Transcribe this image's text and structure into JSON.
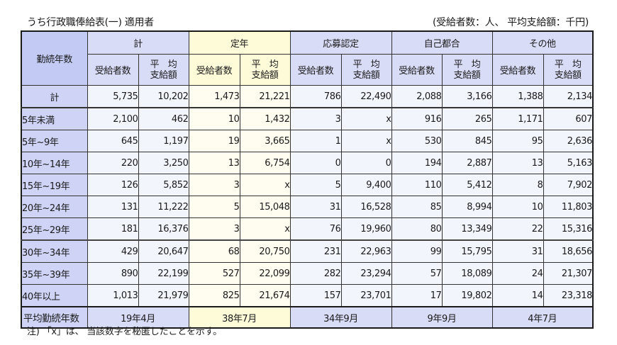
{
  "title": "うち行政職俸給表(一) 適用者",
  "units": "(受給者数：人、 平均支給額：千円)",
  "header": {
    "corner": "勤続年数",
    "groups": [
      "計",
      "定年",
      "応募認定",
      "自己都合",
      "その他"
    ],
    "sub_count": "受給者数",
    "sub_avg_line1": "平　均",
    "sub_avg_line2": "支給額"
  },
  "rows": [
    {
      "label": "計",
      "values": [
        "5,735",
        "10,202",
        "1,473",
        "21,221",
        "786",
        "22,490",
        "2,088",
        "3,166",
        "1,388",
        "2,134"
      ]
    },
    {
      "label": "5年未満",
      "values": [
        "2,100",
        "462",
        "10",
        "1,432",
        "3",
        "x",
        "916",
        "265",
        "1,171",
        "607"
      ]
    },
    {
      "label": "5年~9年",
      "values": [
        "645",
        "1,197",
        "19",
        "3,665",
        "1",
        "x",
        "530",
        "845",
        "95",
        "2,636"
      ]
    },
    {
      "label": "10年~14年",
      "values": [
        "220",
        "3,250",
        "13",
        "6,754",
        "0",
        "0",
        "194",
        "2,887",
        "13",
        "5,163"
      ]
    },
    {
      "label": "15年~19年",
      "values": [
        "126",
        "5,852",
        "3",
        "x",
        "5",
        "9,400",
        "110",
        "5,412",
        "8",
        "7,902"
      ]
    },
    {
      "label": "20年~24年",
      "values": [
        "131",
        "11,222",
        "5",
        "15,048",
        "31",
        "16,528",
        "85",
        "8,994",
        "10",
        "11,803"
      ]
    },
    {
      "label": "25年~29年",
      "values": [
        "181",
        "16,376",
        "3",
        "x",
        "76",
        "19,960",
        "80",
        "13,349",
        "22",
        "15,316"
      ]
    },
    {
      "label": "30年~34年",
      "values": [
        "429",
        "20,647",
        "68",
        "20,750",
        "231",
        "22,963",
        "99",
        "15,795",
        "31",
        "18,656"
      ]
    },
    {
      "label": "35年~39年",
      "values": [
        "890",
        "22,199",
        "527",
        "22,099",
        "282",
        "23,294",
        "57",
        "18,089",
        "24",
        "21,307"
      ]
    },
    {
      "label": "40年以上",
      "values": [
        "1,013",
        "21,979",
        "825",
        "21,674",
        "157",
        "23,701",
        "17",
        "19,802",
        "14",
        "23,318"
      ]
    }
  ],
  "avg_row": {
    "label": "平均勤続年数",
    "values": [
      "19年4月",
      "38年7月",
      "34年9月",
      "9年9月",
      "4年7月"
    ]
  },
  "note": "注) 「x」は、 当該数字を秘匿したことを示す。",
  "colors": {
    "header_blue": "#d9dcf7",
    "row_label_blue": "#cfd4f6",
    "teinen_yellow": "#fdfbd8",
    "cell_bg": "#f3f5fd"
  }
}
